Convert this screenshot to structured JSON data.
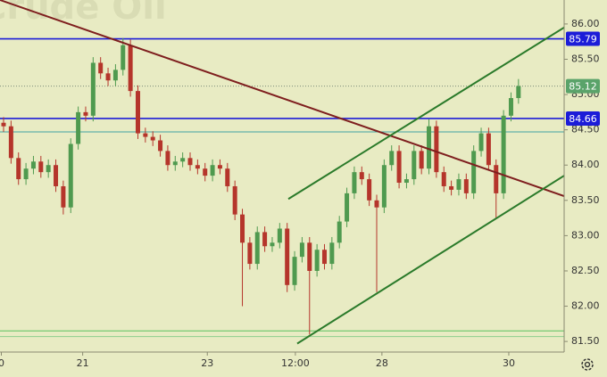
{
  "chart_data": {
    "type": "candlestick",
    "title": "Crude Oil",
    "background": "#e8ebc3",
    "up_color": "#4f9a4f",
    "down_color": "#b5352b",
    "open": [
      84.6,
      84.55,
      84.1,
      83.8,
      83.95,
      84.05,
      83.9,
      84.0,
      83.7,
      83.4,
      84.3,
      84.75,
      84.7,
      85.45,
      85.3,
      85.2,
      85.35,
      85.7,
      85.05,
      84.45,
      84.4,
      84.35,
      84.2,
      84.0,
      84.05,
      84.1,
      84.0,
      83.95,
      83.85,
      84.0,
      83.95,
      83.7,
      83.3,
      82.9,
      82.6,
      83.05,
      82.85,
      82.9,
      83.1,
      82.3,
      82.7,
      82.9,
      82.5,
      82.8,
      82.6,
      82.9,
      83.2,
      83.6,
      83.9,
      83.8,
      83.5,
      83.4,
      84.0,
      84.2,
      83.75,
      83.8,
      84.2,
      83.95,
      84.55,
      83.9,
      83.7,
      83.65,
      83.8,
      83.6,
      84.2,
      84.45,
      84.0,
      83.6,
      84.7,
      84.95
    ],
    "high": [
      84.68,
      84.63,
      84.18,
      84.03,
      84.13,
      84.13,
      84.08,
      84.08,
      83.78,
      84.38,
      84.83,
      84.83,
      85.53,
      85.53,
      85.38,
      85.43,
      85.8,
      85.78,
      85.13,
      84.53,
      84.48,
      84.43,
      84.28,
      84.13,
      84.18,
      84.18,
      84.08,
      84.03,
      84.08,
      84.08,
      84.03,
      83.78,
      83.38,
      82.98,
      83.13,
      83.13,
      82.98,
      83.18,
      83.18,
      82.78,
      82.98,
      82.98,
      82.88,
      82.88,
      82.98,
      83.28,
      83.68,
      83.98,
      83.98,
      83.88,
      83.58,
      84.08,
      84.28,
      84.28,
      83.88,
      84.28,
      84.28,
      84.65,
      84.63,
      83.98,
      83.78,
      83.88,
      83.88,
      84.28,
      84.53,
      84.53,
      84.08,
      84.78,
      85.03,
      85.22
    ],
    "low": [
      84.47,
      84.02,
      83.72,
      83.72,
      83.87,
      83.82,
      83.82,
      83.62,
      83.3,
      83.32,
      84.22,
      84.62,
      84.62,
      85.22,
      85.12,
      85.12,
      85.27,
      84.97,
      84.37,
      84.32,
      84.27,
      84.12,
      83.92,
      83.92,
      83.97,
      83.92,
      83.87,
      83.77,
      83.77,
      83.87,
      83.62,
      83.22,
      82.0,
      82.52,
      82.52,
      82.77,
      82.77,
      82.82,
      82.2,
      82.22,
      82.62,
      81.6,
      82.42,
      82.52,
      82.52,
      82.82,
      83.12,
      83.52,
      83.72,
      83.42,
      82.2,
      83.32,
      83.92,
      83.67,
      83.67,
      83.72,
      83.87,
      83.87,
      83.82,
      83.62,
      83.57,
      83.57,
      83.52,
      83.52,
      84.12,
      83.92,
      83.25,
      83.52,
      84.62,
      84.87
    ],
    "close": [
      84.55,
      84.1,
      83.8,
      83.95,
      84.05,
      83.9,
      84.0,
      83.7,
      83.4,
      84.3,
      84.75,
      84.7,
      85.45,
      85.3,
      85.2,
      85.35,
      85.7,
      85.05,
      84.45,
      84.4,
      84.35,
      84.2,
      84.0,
      84.05,
      84.1,
      84.0,
      83.95,
      83.85,
      84.0,
      83.95,
      83.7,
      83.3,
      82.9,
      82.6,
      83.05,
      82.85,
      82.9,
      83.1,
      82.3,
      82.7,
      82.9,
      82.5,
      82.8,
      82.6,
      82.9,
      83.2,
      83.6,
      83.9,
      83.8,
      83.5,
      83.4,
      84.0,
      84.2,
      83.75,
      83.8,
      84.2,
      83.95,
      84.55,
      83.9,
      83.7,
      83.65,
      83.8,
      83.6,
      84.2,
      84.45,
      84.0,
      83.6,
      84.7,
      84.95,
      85.12
    ],
    "xlim": [
      -0.48,
      75.12
    ],
    "ylim": [
      81.35,
      86.34
    ],
    "xticks": [
      {
        "value": -0.3,
        "label": "0"
      },
      {
        "value": 10.6,
        "label": "21"
      },
      {
        "value": 27.3,
        "label": "23"
      },
      {
        "value": 39.1,
        "label": "12:00"
      },
      {
        "value": 50.7,
        "label": "28"
      },
      {
        "value": 67.7,
        "label": "30"
      }
    ],
    "yticks": [
      {
        "value": 81.5,
        "label": "81.50"
      },
      {
        "value": 82,
        "label": "82.00"
      },
      {
        "value": 82.5,
        "label": "82.50"
      },
      {
        "value": 83,
        "label": "83.00"
      },
      {
        "value": 83.5,
        "label": "83.50"
      },
      {
        "value": 84,
        "label": "84.00"
      },
      {
        "value": 84.5,
        "label": "84.50"
      },
      {
        "value": 85,
        "label": "85.00"
      },
      {
        "value": 85.5,
        "label": "85.50"
      },
      {
        "value": 86,
        "label": "86.00"
      }
    ],
    "levels": [
      {
        "value": 85.79,
        "color": "#1c1cd8",
        "width": 1.6,
        "dash": false,
        "tag": true
      },
      {
        "value": 84.66,
        "color": "#1c1cd8",
        "width": 1.6,
        "dash": false,
        "tag": true
      },
      {
        "value": 85.12,
        "color": "#7a8a7a",
        "width": 1,
        "dash": true,
        "tag": true,
        "tag_color": "#5aa36a"
      },
      {
        "value": 84.47,
        "color": "#3fa3a3",
        "width": 1,
        "dash": false,
        "tag": false
      },
      {
        "value": 81.65,
        "color": "#59c25f",
        "width": 1,
        "dash": false,
        "tag": false
      },
      {
        "value": 81.57,
        "color": "#8ccf8c",
        "width": 1,
        "dash": false,
        "tag": false
      }
    ],
    "trendlines": [
      {
        "x": [
          -0.48,
          75.12
        ],
        "y": [
          86.34,
          83.56
        ],
        "color": "#7e1e1e"
      },
      {
        "x": [
          38.16,
          75.12
        ],
        "y": [
          83.52,
          85.95
        ],
        "color": "#2a7a2a"
      },
      {
        "x": [
          39.35,
          75.12
        ],
        "y": [
          81.47,
          83.85
        ],
        "color": "#2a7a2a"
      }
    ]
  }
}
